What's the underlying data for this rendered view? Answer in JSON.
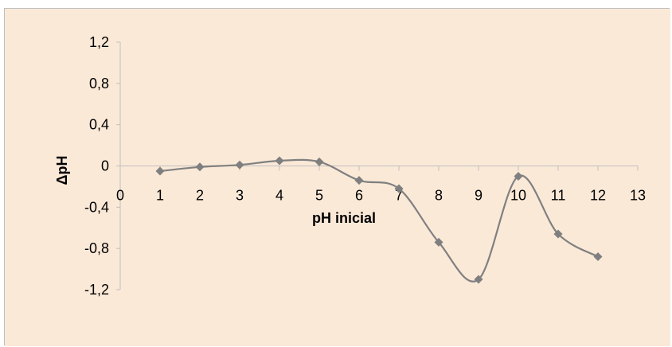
{
  "colors": {
    "plot_background": "#fbe9d8",
    "series_line": "#808080",
    "marker": "#7f7f7f",
    "axis": "#bfbfbf"
  },
  "chart_data": {
    "type": "line",
    "smoothed": true,
    "marker": "diamond",
    "title": "",
    "xlabel": "pH inicial",
    "ylabel": "ΔpH",
    "xlim": [
      0,
      13
    ],
    "ylim": [
      -1.2,
      1.2
    ],
    "x_ticks": [
      "0",
      "1",
      "2",
      "3",
      "4",
      "5",
      "6",
      "7",
      "8",
      "9",
      "10",
      "11",
      "12",
      "13"
    ],
    "y_ticks": [
      "1,2",
      "0,8",
      "0,4",
      "0",
      "-0,4",
      "-0,8",
      "-1,2"
    ],
    "grid": false,
    "legend": "none",
    "x": [
      1,
      2,
      3,
      4,
      5,
      6,
      7,
      8,
      9,
      10,
      11,
      12
    ],
    "series": [
      {
        "values": [
          -0.05,
          -0.01,
          0.01,
          0.05,
          0.04,
          -0.14,
          -0.22,
          -0.74,
          -1.1,
          -0.1,
          -0.66,
          -0.88
        ]
      }
    ]
  }
}
